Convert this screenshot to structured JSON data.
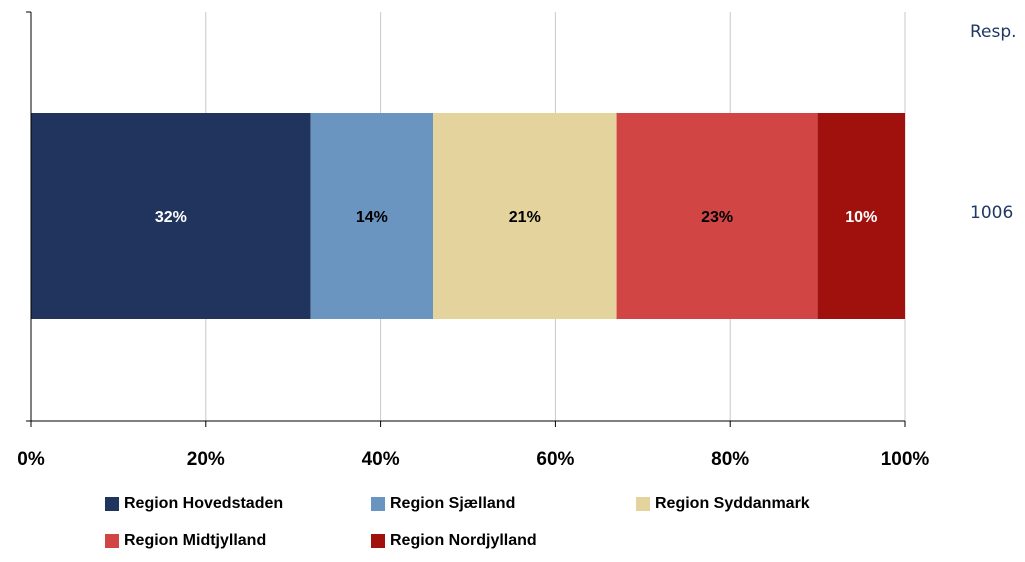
{
  "chart_data": {
    "type": "bar",
    "orientation": "horizontal",
    "stacked": true,
    "categories": [
      "1006"
    ],
    "series": [
      {
        "name": "Region Hovedstaden",
        "values": [
          32
        ],
        "label": "32%",
        "color": "#21345e",
        "label_color": "#ffffff"
      },
      {
        "name": "Region Sjælland",
        "values": [
          14
        ],
        "label": "14%",
        "color": "#6b95c1",
        "label_color": "#000000"
      },
      {
        "name": "Region Syddanmark",
        "values": [
          21
        ],
        "label": "21%",
        "color": "#e4d39c",
        "label_color": "#000000"
      },
      {
        "name": "Region Midtjylland",
        "values": [
          23
        ],
        "label": "23%",
        "color": "#d14545",
        "label_color": "#000000"
      },
      {
        "name": "Region Nordjylland",
        "values": [
          10
        ],
        "label": "10%",
        "color": "#a0110e",
        "label_color": "#ffffff"
      }
    ],
    "xlim": [
      0,
      100
    ],
    "x_ticks": [
      "0%",
      "20%",
      "40%",
      "60%",
      "80%",
      "100%"
    ],
    "grid": true,
    "legend_position": "bottom",
    "title": "",
    "xlabel": "",
    "ylabel": ""
  },
  "side_labels": {
    "header": "Resp.",
    "value": "1006"
  }
}
